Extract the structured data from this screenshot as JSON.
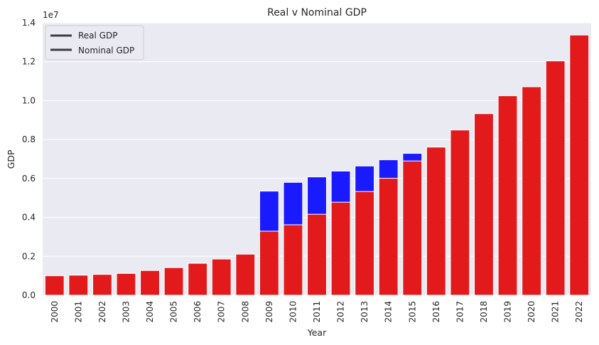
{
  "chart_data": {
    "type": "bar",
    "title": "Real v Nominal GDP",
    "xlabel": "Year",
    "ylabel": "GDP",
    "y_scale_label": "1e7",
    "y_scale_factor": 10000000,
    "ylim": [
      0,
      14000000
    ],
    "yticks": [
      0,
      2000000,
      4000000,
      6000000,
      8000000,
      10000000,
      12000000,
      14000000
    ],
    "ytick_labels": [
      "0.0",
      "0.2",
      "0.4",
      "0.6",
      "0.8",
      "1.0",
      "1.2",
      "1.4"
    ],
    "grid": true,
    "legend_position": "top-left",
    "categories": [
      "2000",
      "2001",
      "2002",
      "2003",
      "2004",
      "2005",
      "2006",
      "2007",
      "2008",
      "2009",
      "2010",
      "2011",
      "2012",
      "2013",
      "2014",
      "2015",
      "2016",
      "2017",
      "2018",
      "2019",
      "2020",
      "2021",
      "2022"
    ],
    "series": [
      {
        "name": "Real GDP",
        "color": "#1a1aff",
        "values": [
          1000000,
          1030000,
          1070000,
          1120000,
          1270000,
          1420000,
          1640000,
          1860000,
          2110000,
          5350000,
          5800000,
          6080000,
          6380000,
          6640000,
          6960000,
          7290000,
          7610000,
          8490000,
          9330000,
          10250000,
          10710000,
          12040000,
          13370000
        ]
      },
      {
        "name": "Nominal GDP",
        "color": "#e31a1c",
        "values": [
          1000000,
          1030000,
          1070000,
          1120000,
          1270000,
          1420000,
          1640000,
          1860000,
          2110000,
          3290000,
          3620000,
          4160000,
          4780000,
          5330000,
          6010000,
          6900000,
          7610000,
          8490000,
          9330000,
          10250000,
          10710000,
          12040000,
          13370000
        ]
      }
    ]
  }
}
